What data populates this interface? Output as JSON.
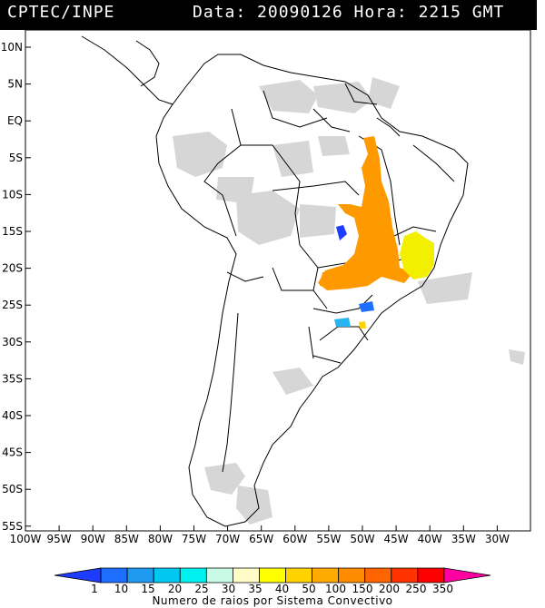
{
  "header": {
    "source": "CPTEC/INPE",
    "datetime": "Data: 20090126 Hora: 2215 GMT"
  },
  "axes": {
    "lat_labels": [
      "10N",
      "5N",
      "EQ",
      "5S",
      "10S",
      "15S",
      "20S",
      "25S",
      "30S",
      "35S",
      "40S",
      "45S",
      "50S",
      "55S"
    ],
    "lon_labels": [
      "100W",
      "95W",
      "90W",
      "85W",
      "80W",
      "75W",
      "70W",
      "65W",
      "60W",
      "55W",
      "50W",
      "45W",
      "40W",
      "35W",
      "30W"
    ]
  },
  "colorbar": {
    "title": "Numero de raios por Sistema Convectivo",
    "ticks": [
      "1",
      "10",
      "15",
      "20",
      "25",
      "30",
      "35",
      "40",
      "50",
      "100",
      "150",
      "200",
      "250",
      "350"
    ],
    "colors": [
      "#1e3cff",
      "#1e6eff",
      "#1e9bf0",
      "#00c8f0",
      "#00f0f0",
      "#c8fae6",
      "#fffcc8",
      "#ffff00",
      "#ffd200",
      "#ffaa00",
      "#ff8c00",
      "#ff6400",
      "#ff3200",
      "#ff0000",
      "#ff00a0"
    ]
  },
  "legend_colors": {
    "cloud": "#d4d4d4",
    "orange": "#ff9900",
    "yellow": "#f2f000",
    "blue": "#1e6eff",
    "lightblue": "#28b4f0"
  }
}
